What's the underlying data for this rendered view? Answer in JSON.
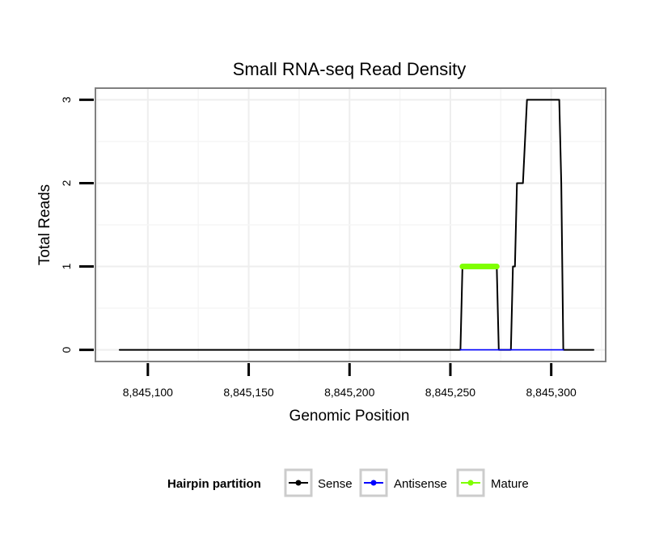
{
  "chart_data": {
    "type": "line",
    "title": "Small RNA-seq Read Density",
    "xlabel": "Genomic Position",
    "ylabel": "Total Reads",
    "xlim": [
      8845074,
      8845327
    ],
    "ylim": [
      -0.14,
      3.14
    ],
    "x_ticks": [
      8845100,
      8845150,
      8845200,
      8845250,
      8845300
    ],
    "x_tick_labels": [
      "8,845,100",
      "8,845,150",
      "8,845,200",
      "8,845,250",
      "8,845,300"
    ],
    "y_ticks": [
      0,
      1,
      2,
      3
    ],
    "y_tick_labels": [
      "0",
      "1",
      "2",
      "3"
    ],
    "grid": true,
    "legend_position": "bottom",
    "legend_title": "Hairpin partition",
    "series": [
      {
        "name": "Sense",
        "color": "#000000",
        "x": [
          8845086,
          8845255,
          8845256,
          8845273,
          8845274,
          8845280,
          8845281,
          8845282,
          8845283,
          8845286,
          8845288,
          8845304,
          8845305,
          8845306,
          8845321
        ],
        "y": [
          0,
          0,
          1,
          1,
          0,
          0,
          1,
          1,
          2,
          2,
          3,
          3,
          2,
          0,
          0
        ]
      },
      {
        "name": "Antisense",
        "color": "#0000ff",
        "x": [
          8845255,
          8845306
        ],
        "y": [
          0,
          0
        ]
      },
      {
        "name": "Mature",
        "color": "#7fff00",
        "x": [
          8845256,
          8845273
        ],
        "y": [
          1,
          1
        ]
      }
    ]
  }
}
